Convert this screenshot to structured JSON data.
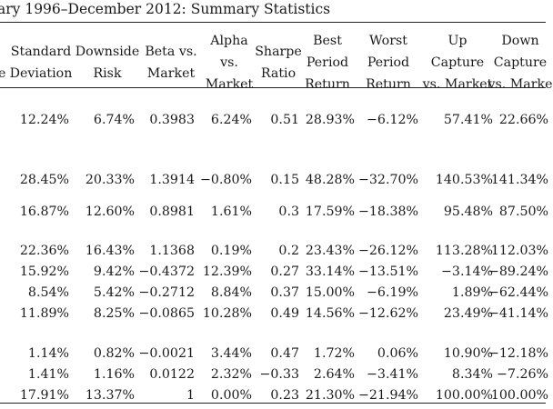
{
  "title": "ary 1996–December 2012: Summary Statistics",
  "headers": [
    [
      "",
      "e"
    ],
    [
      "Standard",
      "Deviation"
    ],
    [
      "Downside",
      "Risk"
    ],
    [
      "Beta vs.",
      "Market"
    ],
    [
      "Alpha",
      "vs.",
      "Market"
    ],
    [
      "Sharpe",
      "Ratio"
    ],
    [
      "Best",
      "Period",
      "Return"
    ],
    [
      "Worst",
      "Period",
      "Return"
    ],
    [
      "Up",
      "Capture",
      "vs. Market"
    ],
    [
      "Down",
      "Capture",
      "vs. Marke"
    ]
  ],
  "rows": [
    [
      "12.24%",
      "6.74%",
      "0.3983",
      "6.24%",
      "0.51",
      "28.93%",
      "−6.12%",
      "57.41%",
      "22.66%"
    ],
    [
      "28.45%",
      "20.33%",
      "1.3914",
      "−0.80%",
      "0.15",
      "48.28%",
      "−32.70%",
      "140.53%",
      "141.34%"
    ],
    [
      "16.87%",
      "12.60%",
      "0.8981",
      "1.61%",
      "0.3",
      "17.59%",
      "−18.38%",
      "95.48%",
      "87.50%"
    ],
    [
      "22.36%",
      "16.43%",
      "1.1368",
      "0.19%",
      "0.2",
      "23.43%",
      "−26.12%",
      "113.28%",
      "112.03%"
    ],
    [
      "15.92%",
      "9.42%",
      "−0.4372",
      "12.39%",
      "0.27",
      "33.14%",
      "−13.51%",
      "−3.14%",
      "−89.24%"
    ],
    [
      "8.54%",
      "5.42%",
      "−0.2712",
      "8.84%",
      "0.37",
      "15.00%",
      "−6.19%",
      "1.89%",
      "−62.44%"
    ],
    [
      "11.89%",
      "8.25%",
      "−0.0865",
      "10.28%",
      "0.49",
      "14.56%",
      "−12.62%",
      "23.49%",
      "−41.14%"
    ],
    [
      "1.14%",
      "0.82%",
      "−0.0021",
      "3.44%",
      "0.47",
      "1.72%",
      "0.06%",
      "10.90%",
      "−12.18%"
    ],
    [
      "1.41%",
      "1.16%",
      "0.0122",
      "2.32%",
      "−0.33",
      "2.64%",
      "−3.41%",
      "8.34%",
      "−7.26%"
    ],
    [
      "17.91%",
      "13.37%",
      "1",
      "0.00%",
      "0.23",
      "21.30%",
      "−21.94%",
      "100.00%",
      "100.00%"
    ]
  ]
}
